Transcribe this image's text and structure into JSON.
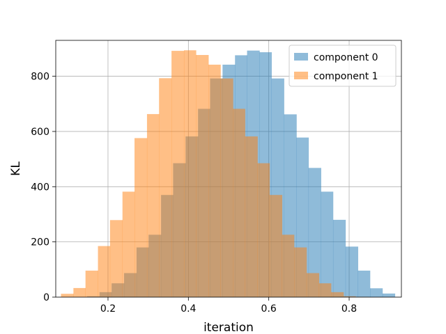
{
  "chart_data": {
    "type": "bar",
    "title": "",
    "xlabel": "iteration",
    "ylabel": "KL",
    "xlim": [
      0.07,
      0.93
    ],
    "ylim": [
      0,
      930
    ],
    "xticks": [
      0.2,
      0.4,
      0.6,
      0.8
    ],
    "xtick_labels": [
      "0.2",
      "0.4",
      "0.6",
      "0.8"
    ],
    "yticks": [
      0,
      200,
      400,
      600,
      800
    ],
    "ytick_labels": [
      "0",
      "200",
      "400",
      "600",
      "800"
    ],
    "grid": true,
    "legend_position": "top-right",
    "series": [
      {
        "name": "component 0",
        "color": "#1f77b4",
        "alpha": 0.5,
        "bin_edges": [
          0.148,
          0.179,
          0.209,
          0.24,
          0.271,
          0.301,
          0.332,
          0.362,
          0.393,
          0.424,
          0.454,
          0.485,
          0.516,
          0.546,
          0.577,
          0.607,
          0.638,
          0.669,
          0.699,
          0.73,
          0.76,
          0.791,
          0.822,
          0.852,
          0.883,
          0.914
        ],
        "values": [
          3,
          18,
          50,
          87,
          180,
          226,
          370,
          485,
          582,
          682,
          792,
          842,
          876,
          893,
          887,
          792,
          662,
          578,
          468,
          382,
          280,
          183,
          96,
          32,
          13
        ]
      },
      {
        "name": "component 1",
        "color": "#ff7f0e",
        "alpha": 0.5,
        "bin_edges": [
          0.083,
          0.114,
          0.144,
          0.175,
          0.205,
          0.236,
          0.266,
          0.297,
          0.327,
          0.358,
          0.389,
          0.419,
          0.45,
          0.48,
          0.511,
          0.541,
          0.572,
          0.602,
          0.633,
          0.663,
          0.694,
          0.725,
          0.755,
          0.786,
          0.816,
          0.847
        ],
        "values": [
          12,
          33,
          96,
          185,
          279,
          382,
          576,
          663,
          793,
          892,
          894,
          877,
          842,
          792,
          682,
          582,
          485,
          370,
          226,
          180,
          87,
          50,
          18,
          3,
          1
        ]
      }
    ]
  }
}
